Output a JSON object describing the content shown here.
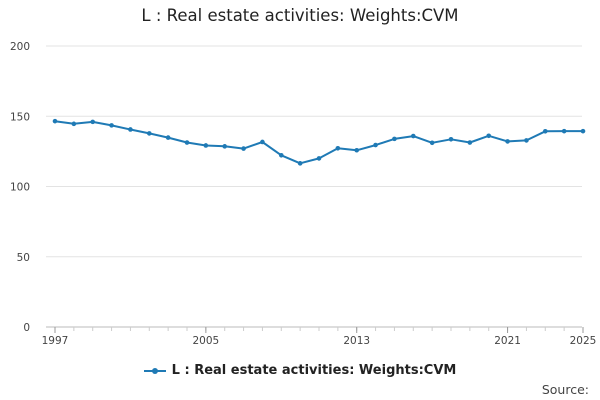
{
  "chart_data": {
    "type": "line",
    "title": "L : Real estate activities: Weights:CVM",
    "xlabel": "",
    "ylabel": "",
    "ylim": [
      0,
      200
    ],
    "yticks": [
      0,
      50,
      100,
      150,
      200
    ],
    "xlim": [
      1997,
      2025
    ],
    "xticks": [
      1997,
      2005,
      2013,
      2021,
      2025
    ],
    "grid": true,
    "legend_position": "bottom",
    "series": [
      {
        "name": "L : Real estate activities: Weights:CVM",
        "color": "#1f7ab5",
        "x": [
          1997,
          1998,
          1999,
          2000,
          2001,
          2002,
          2003,
          2004,
          2005,
          2006,
          2007,
          2008,
          2009,
          2010,
          2011,
          2012,
          2013,
          2014,
          2015,
          2016,
          2017,
          2018,
          2019,
          2020,
          2021,
          2022,
          2023,
          2024,
          2025
        ],
        "values": [
          146.5,
          144.6,
          146,
          143.5,
          140.6,
          137.8,
          134.8,
          131.3,
          129.2,
          128.6,
          127,
          131.7,
          122.2,
          116.5,
          120,
          127.2,
          125.8,
          129.5,
          133.9,
          135.9,
          131.1,
          133.6,
          131.3,
          136.1,
          132.1,
          132.8,
          139.3,
          139.4,
          139.4
        ]
      }
    ]
  },
  "source_label": "Source:"
}
